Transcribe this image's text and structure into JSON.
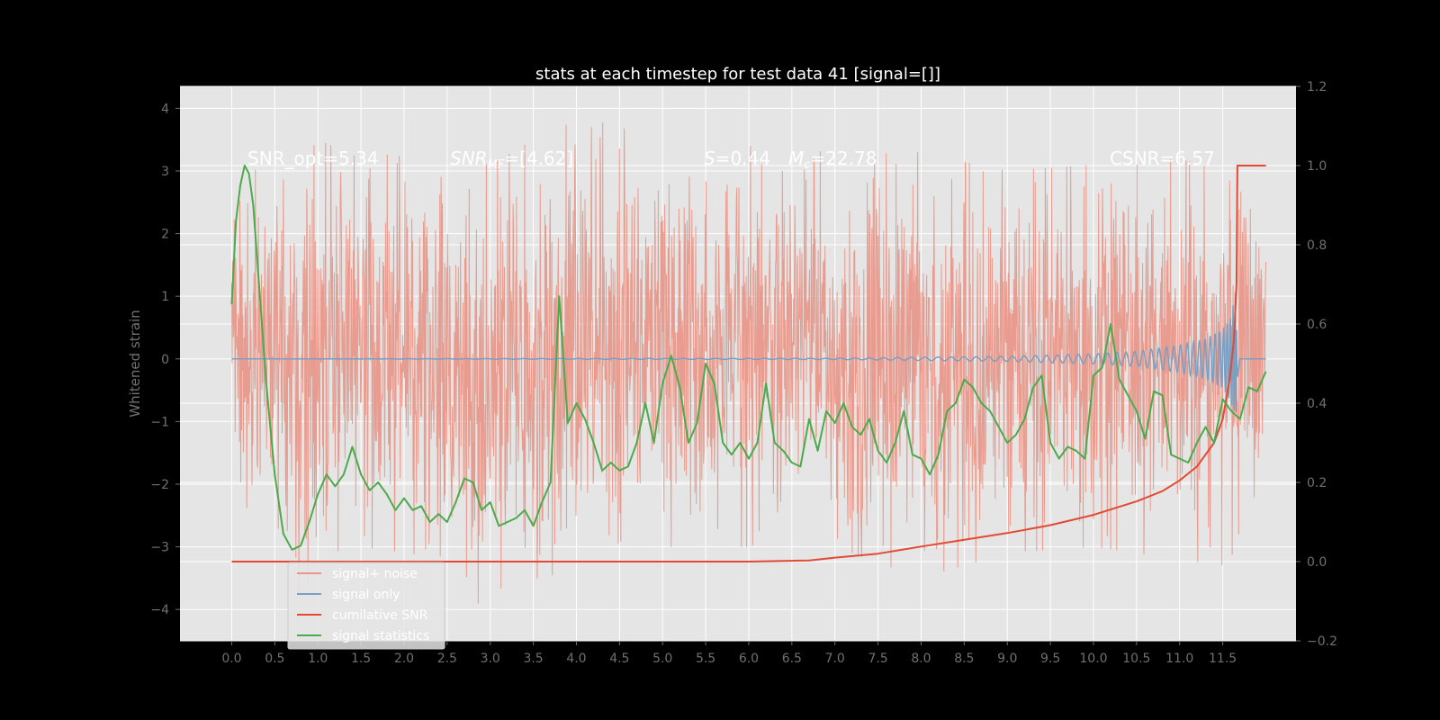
{
  "chart_data": {
    "type": "line",
    "title": "stats at each timestep for test data 41 [signal=[]]",
    "ylabel": "Whitened strain",
    "x_ticks": [
      "0.0",
      "0.5",
      "1.0",
      "1.5",
      "2.0",
      "2.5",
      "3.0",
      "3.5",
      "4.0",
      "4.5",
      "5.0",
      "5.5",
      "6.0",
      "6.5",
      "7.0",
      "7.5",
      "8.0",
      "8.5",
      "9.0",
      "9.5",
      "10.0",
      "10.5",
      "11.0",
      "11.5"
    ],
    "y_left_ticks": [
      "4",
      "3",
      "2",
      "1",
      "0",
      "−1",
      "−2",
      "−3",
      "−4"
    ],
    "y_right_ticks": [
      "1.2",
      "1.0",
      "0.8",
      "0.6",
      "0.4",
      "0.2",
      "0.0",
      "−0.2"
    ],
    "xlim": [
      -0.6,
      12.35
    ],
    "ylim_left": [
      -4.5,
      4.35
    ],
    "ylim_right": [
      -0.2,
      1.2
    ],
    "grid": true,
    "legend_position": "lower-left",
    "annotations": {
      "snr_opt": "SNR_opt=5.34",
      "snr_mf_sym": "SNR",
      "snr_mf_sub": "MF",
      "snr_mf_val": "=[4.62]",
      "s_sym": "S",
      "s_val": "=0.44",
      "mc_sym": "M",
      "mc_sub": "c",
      "mc_val": "=22.78",
      "csnr": "CSNR=6.57"
    },
    "series": [
      {
        "name": "signal+ noise",
        "color": "#e8988a",
        "axis": "left",
        "envelope_x": [
          0.0,
          0.25,
          0.5,
          0.75,
          1.0,
          1.5,
          2.0,
          3.0,
          4.0,
          5.0,
          6.0,
          7.0,
          8.0,
          9.0,
          10.0,
          11.0,
          11.5,
          11.65,
          12.0
        ],
        "envelope_upper": [
          2.8,
          3.0,
          3.2,
          3.0,
          3.5,
          3.2,
          3.3,
          3.1,
          3.9,
          3.5,
          3.4,
          3.3,
          3.3,
          3.0,
          3.1,
          3.2,
          3.0,
          3.8,
          2.0
        ],
        "envelope_lower": [
          -1.4,
          -3.4,
          -2.5,
          -3.8,
          -3.4,
          -3.0,
          -3.1,
          -4.1,
          -3.2,
          -3.0,
          -3.0,
          -3.0,
          -3.5,
          -3.1,
          -3.0,
          -3.2,
          -3.3,
          -3.2,
          -2.3
        ]
      },
      {
        "name": "signal only",
        "color": "#7b9ec1",
        "axis": "left",
        "x": [
          0.0,
          7.0,
          9.0,
          10.0,
          10.5,
          11.0,
          11.3,
          11.5,
          11.6,
          11.65,
          11.67,
          11.7,
          12.0
        ],
        "amplitude": [
          0.0,
          0.01,
          0.04,
          0.08,
          0.12,
          0.22,
          0.32,
          0.48,
          0.7,
          1.1,
          0.3,
          0.0,
          0.0
        ]
      },
      {
        "name": "cumilative SNR",
        "color": "#e24a33",
        "axis": "right",
        "x": [
          0.0,
          5.5,
          6.0,
          6.7,
          7.0,
          7.5,
          8.0,
          8.5,
          9.0,
          9.5,
          10.0,
          10.5,
          10.8,
          11.0,
          11.2,
          11.4,
          11.5,
          11.58,
          11.63,
          11.66,
          11.67,
          12.0
        ],
        "values": [
          0.0,
          0.0,
          0.0,
          0.003,
          0.01,
          0.02,
          0.038,
          0.055,
          0.072,
          0.092,
          0.118,
          0.152,
          0.178,
          0.205,
          0.24,
          0.3,
          0.36,
          0.46,
          0.56,
          0.7,
          1.0,
          1.0
        ]
      },
      {
        "name": "signal statistics",
        "color": "#4caa4c",
        "axis": "right",
        "x": [
          0.0,
          0.05,
          0.1,
          0.15,
          0.2,
          0.25,
          0.3,
          0.4,
          0.5,
          0.6,
          0.7,
          0.8,
          0.9,
          1.0,
          1.1,
          1.2,
          1.3,
          1.4,
          1.5,
          1.6,
          1.7,
          1.8,
          1.9,
          2.0,
          2.1,
          2.2,
          2.3,
          2.4,
          2.5,
          2.6,
          2.7,
          2.8,
          2.9,
          3.0,
          3.1,
          3.2,
          3.3,
          3.4,
          3.5,
          3.6,
          3.7,
          3.8,
          3.9,
          4.0,
          4.1,
          4.2,
          4.3,
          4.4,
          4.5,
          4.6,
          4.7,
          4.8,
          4.9,
          5.0,
          5.1,
          5.2,
          5.3,
          5.4,
          5.5,
          5.6,
          5.7,
          5.8,
          5.9,
          6.0,
          6.1,
          6.2,
          6.3,
          6.4,
          6.5,
          6.6,
          6.7,
          6.8,
          6.9,
          7.0,
          7.1,
          7.2,
          7.3,
          7.4,
          7.5,
          7.6,
          7.7,
          7.8,
          7.9,
          8.0,
          8.1,
          8.2,
          8.3,
          8.4,
          8.5,
          8.6,
          8.7,
          8.8,
          8.9,
          9.0,
          9.1,
          9.2,
          9.3,
          9.4,
          9.5,
          9.6,
          9.7,
          9.8,
          9.9,
          10.0,
          10.1,
          10.2,
          10.3,
          10.4,
          10.5,
          10.6,
          10.7,
          10.8,
          10.9,
          11.0,
          11.1,
          11.2,
          11.3,
          11.4,
          11.5,
          11.6,
          11.7,
          11.8,
          11.9,
          12.0
        ],
        "values": [
          0.65,
          0.86,
          0.95,
          1.0,
          0.98,
          0.9,
          0.75,
          0.45,
          0.22,
          0.07,
          0.03,
          0.04,
          0.1,
          0.17,
          0.22,
          0.19,
          0.22,
          0.29,
          0.22,
          0.18,
          0.2,
          0.17,
          0.13,
          0.16,
          0.13,
          0.14,
          0.1,
          0.12,
          0.1,
          0.15,
          0.21,
          0.2,
          0.13,
          0.15,
          0.09,
          0.1,
          0.11,
          0.13,
          0.09,
          0.15,
          0.2,
          0.67,
          0.35,
          0.4,
          0.36,
          0.3,
          0.23,
          0.25,
          0.23,
          0.24,
          0.3,
          0.4,
          0.3,
          0.45,
          0.52,
          0.44,
          0.3,
          0.35,
          0.5,
          0.45,
          0.3,
          0.27,
          0.3,
          0.26,
          0.3,
          0.45,
          0.3,
          0.28,
          0.25,
          0.24,
          0.36,
          0.28,
          0.38,
          0.35,
          0.4,
          0.34,
          0.32,
          0.36,
          0.28,
          0.25,
          0.3,
          0.38,
          0.27,
          0.26,
          0.22,
          0.27,
          0.38,
          0.4,
          0.46,
          0.44,
          0.4,
          0.38,
          0.34,
          0.3,
          0.32,
          0.36,
          0.44,
          0.47,
          0.3,
          0.26,
          0.29,
          0.28,
          0.26,
          0.47,
          0.49,
          0.6,
          0.46,
          0.42,
          0.38,
          0.31,
          0.43,
          0.42,
          0.27,
          0.26,
          0.25,
          0.3,
          0.34,
          0.3,
          0.41,
          0.38,
          0.36,
          0.44,
          0.43,
          0.48
        ]
      }
    ]
  }
}
